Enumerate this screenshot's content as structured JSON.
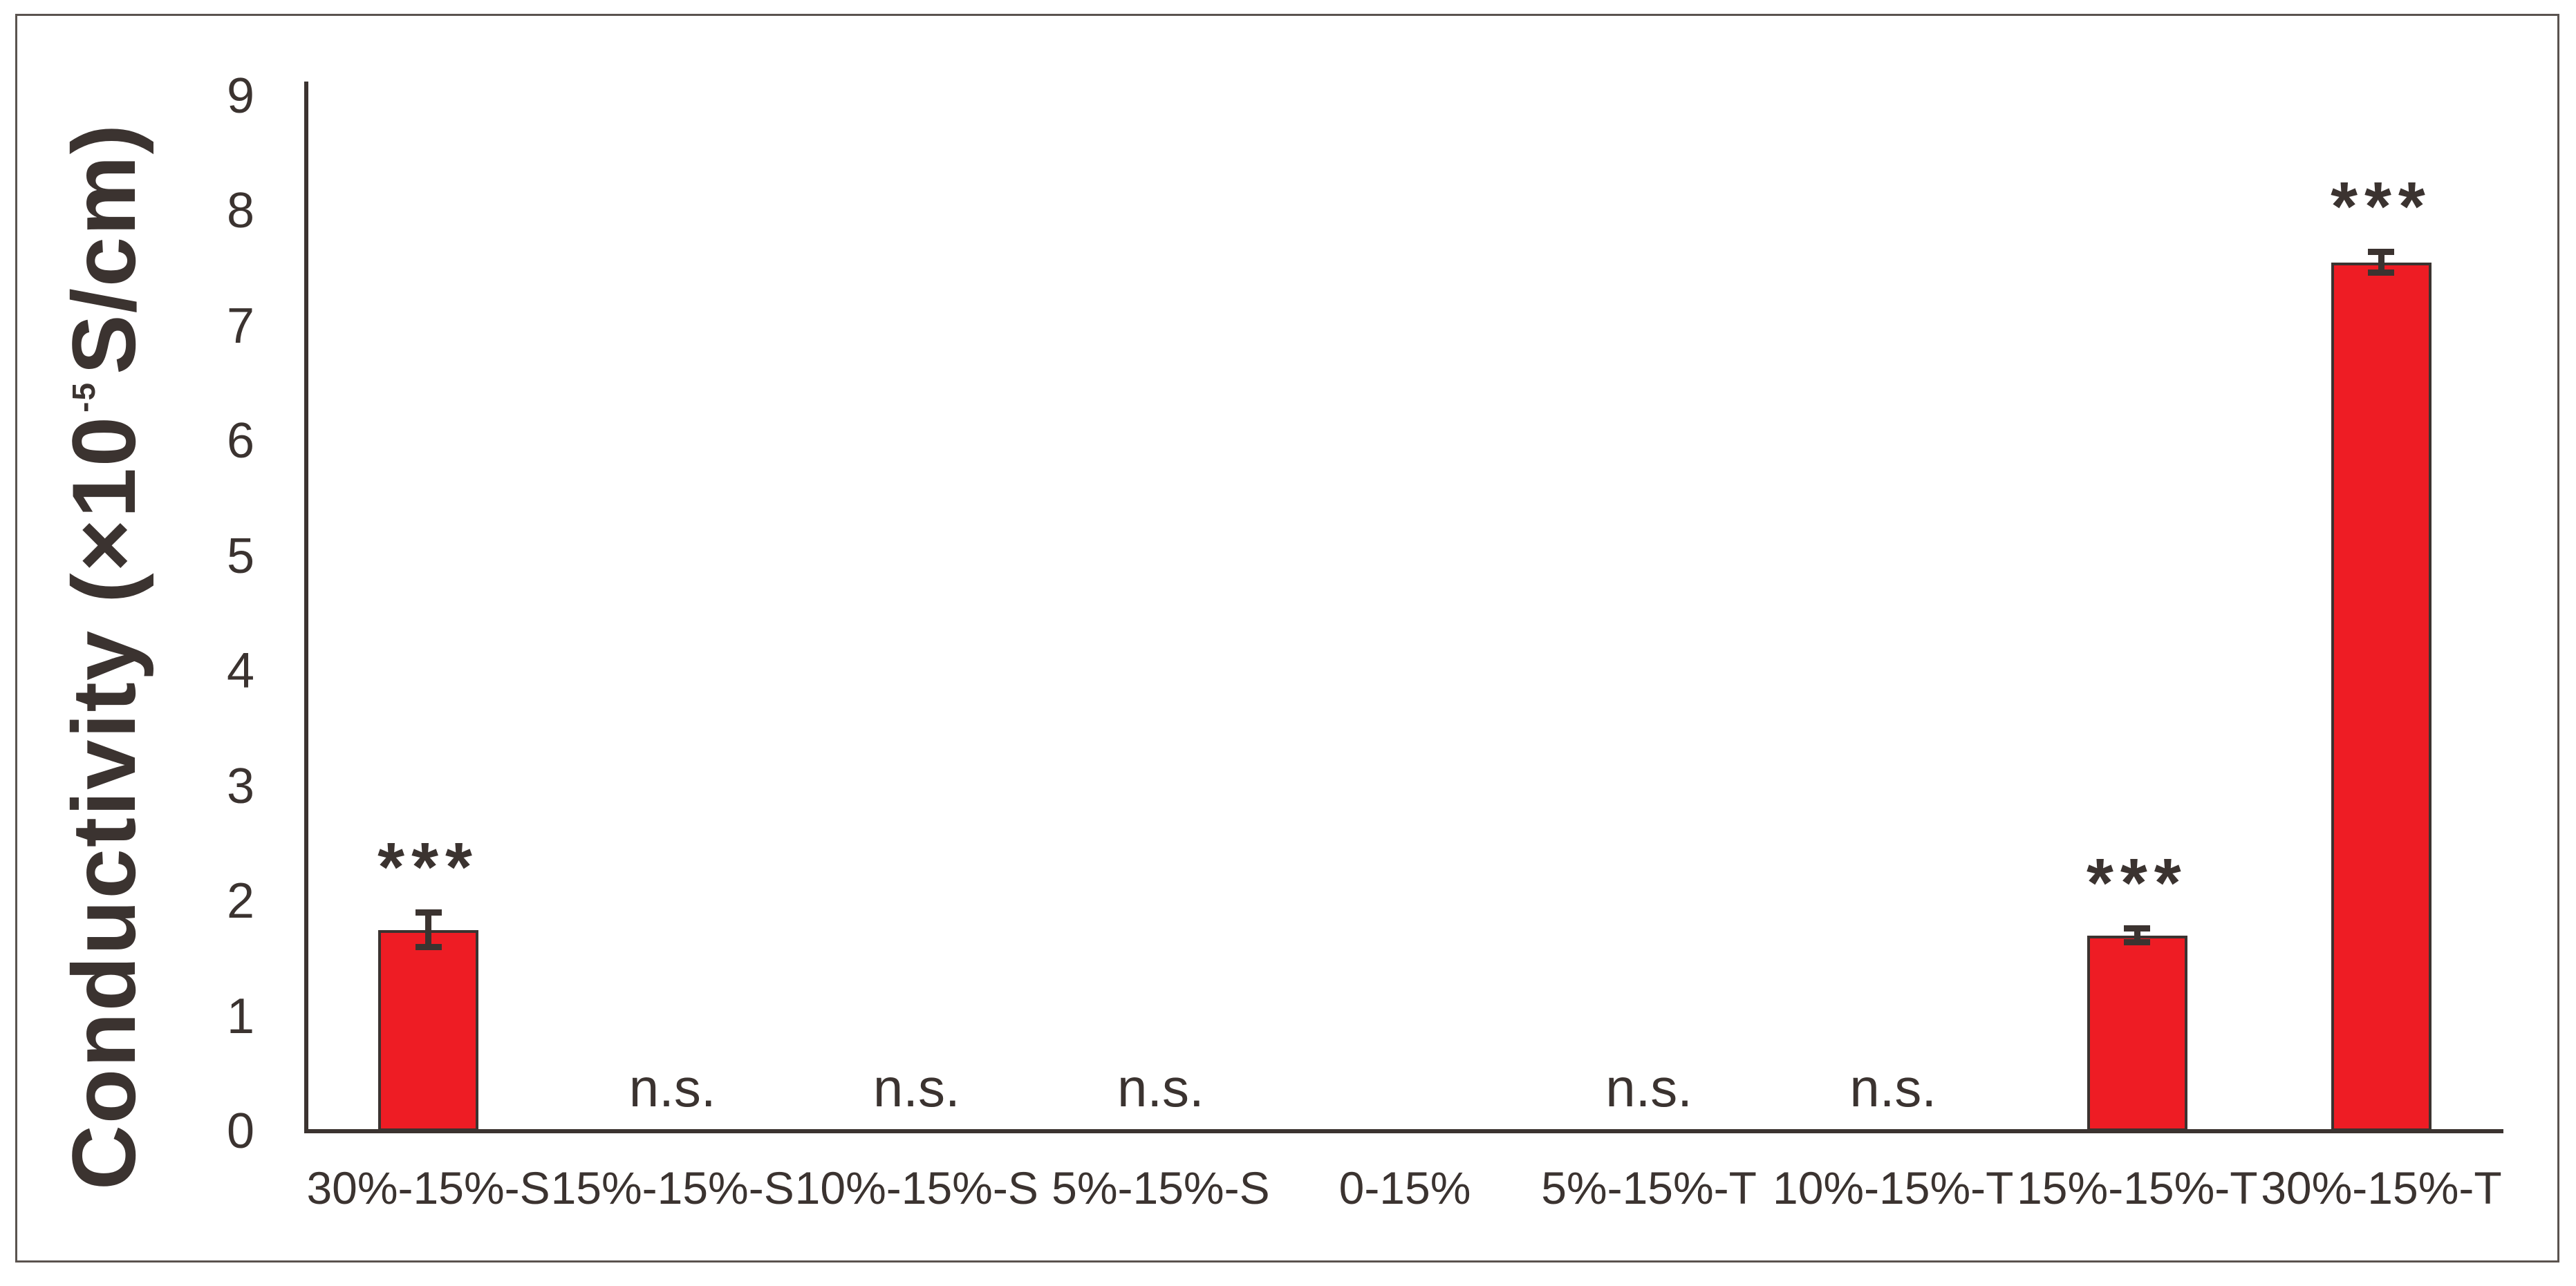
{
  "chart_data": {
    "type": "bar",
    "title": "",
    "xlabel": "",
    "ylabel_prefix": "Conductivity (×10",
    "ylabel_superscript": "-5",
    "ylabel_suffix": "S/cm)",
    "categories": [
      "30%-15%-S",
      "15%-15%-S",
      "10%-15%-S",
      "5%-15%-S",
      "0-15%",
      "5%-15%-T",
      "10%-15%-T",
      "15%-15%-T",
      "30%-15%-T"
    ],
    "values": [
      1.75,
      0,
      0,
      0,
      0,
      0,
      0,
      1.7,
      7.55
    ],
    "errors": [
      0.15,
      0,
      0,
      0,
      0,
      0,
      0,
      0.06,
      0.09
    ],
    "annotations": [
      "***",
      "n.s.",
      "n.s.",
      "n.s.",
      "",
      "n.s.",
      "n.s.",
      "***",
      "***"
    ],
    "yticks": [
      0,
      1,
      2,
      3,
      4,
      5,
      6,
      7,
      8,
      9
    ],
    "ylim": [
      0,
      9
    ],
    "grid": false,
    "legend": "none",
    "colors": {
      "bar_fill": "#ee1c24",
      "stroke": "#3b3330",
      "frame": "#5a534f",
      "background": "#ffffff"
    }
  }
}
